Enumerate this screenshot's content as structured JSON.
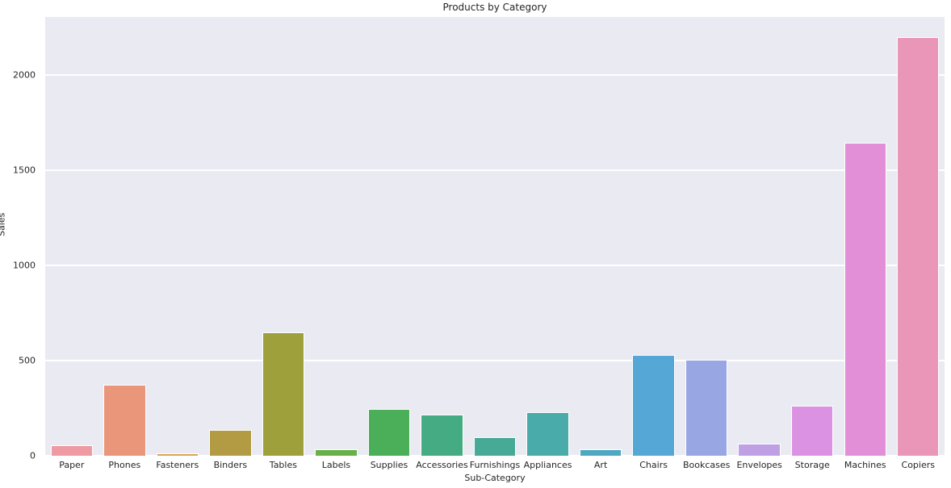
{
  "figure": {
    "background": "#ffffff",
    "plot_background": "#eaeaf2",
    "grid_color": "#ffffff",
    "text_color": "#262626"
  },
  "chart_data": {
    "type": "bar",
    "title": "Products by Category",
    "xlabel": "Sub-Category",
    "ylabel": "Sales",
    "categories": [
      "Paper",
      "Phones",
      "Fasteners",
      "Binders",
      "Tables",
      "Labels",
      "Supplies",
      "Accessories",
      "Furnishings",
      "Appliances",
      "Art",
      "Chairs",
      "Bookcases",
      "Envelopes",
      "Storage",
      "Machines",
      "Copiers"
    ],
    "values": [
      57,
      371,
      14,
      134,
      649,
      34,
      246,
      216,
      96,
      231,
      34,
      532,
      504,
      65,
      265,
      1646,
      2199
    ],
    "bar_colors": [
      "#ee9aa2",
      "#e9967a",
      "#d9a453",
      "#b29b43",
      "#9ea13b",
      "#68b04a",
      "#4bae58",
      "#44ab83",
      "#46aa97",
      "#49abaa",
      "#4fa8c2",
      "#55a8d5",
      "#98a7e3",
      "#c0a0e5",
      "#db92e2",
      "#e28fd8",
      "#ea96b8"
    ],
    "yticks": [
      0,
      500,
      1000,
      1500,
      2000
    ],
    "ylim": [
      0,
      2306
    ],
    "grid": true,
    "legend": false
  }
}
